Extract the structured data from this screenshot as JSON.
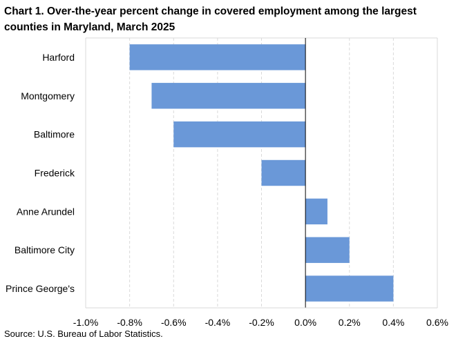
{
  "title": "Chart 1. Over-the-year percent change in covered employment among the largest counties in Maryland, March 2025",
  "source": "Source: U.S. Bureau of Labor Statistics.",
  "chart_data": {
    "type": "bar",
    "orientation": "horizontal",
    "categories": [
      "Harford",
      "Montgomery",
      "Baltimore",
      "Frederick",
      "Anne Arundel",
      "Baltimore City",
      "Prince George's"
    ],
    "values": [
      -0.8,
      -0.7,
      -0.6,
      -0.2,
      0.1,
      0.2,
      0.4
    ],
    "xlim": [
      -1.0,
      0.6
    ],
    "x_ticks": [
      -1.0,
      -0.8,
      -0.6,
      -0.4,
      -0.2,
      0.0,
      0.2,
      0.4,
      0.6
    ],
    "x_tick_labels": [
      "-1.0%",
      "-0.8%",
      "-0.6%",
      "-0.4%",
      "-0.2%",
      "0.0%",
      "0.2%",
      "0.4%",
      "0.6%"
    ],
    "xlabel": "",
    "ylabel": "",
    "grid": "vertical dashed",
    "legend": "none",
    "bar_color": "#6a98d8",
    "grid_color": "#d9d9d9",
    "axis_color": "#000000"
  }
}
